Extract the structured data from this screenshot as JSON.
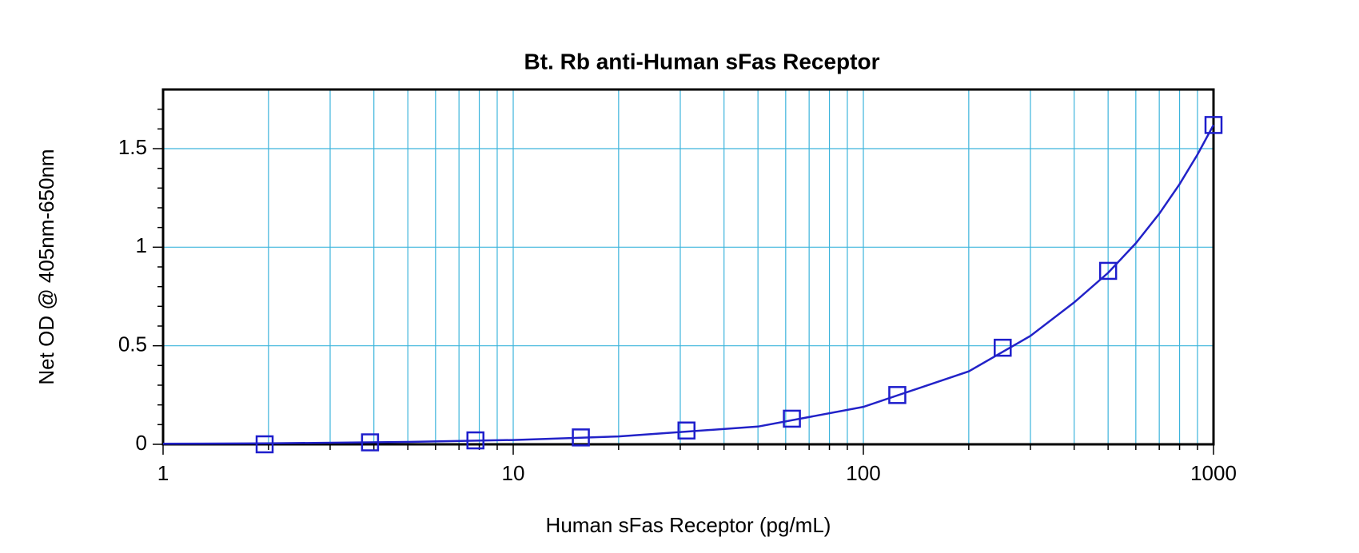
{
  "chart_data": {
    "type": "scatter",
    "title": "Bt. Rb anti-Human sFas  Receptor",
    "x_label": "Human sFas Receptor (pg/mL)",
    "y_label": "Net OD @ 405nm-650nm",
    "x_scale": "log",
    "xlim": [
      1,
      1000
    ],
    "xticks": [
      1,
      10,
      100,
      1000
    ],
    "xminor": [
      2,
      3,
      4,
      5,
      6,
      7,
      8,
      9,
      20,
      30,
      40,
      50,
      60,
      70,
      80,
      90,
      200,
      300,
      400,
      500,
      600,
      700,
      800,
      900
    ],
    "ylim": [
      0,
      1.8
    ],
    "yticks": [
      0,
      0.5,
      1,
      1.5
    ],
    "yminor": [
      0.1,
      0.2,
      0.3,
      0.4,
      0.6,
      0.7,
      0.8,
      0.9,
      1.1,
      1.2,
      1.3,
      1.4,
      1.6,
      1.7
    ],
    "grid": true,
    "grid_color": "#3cb4dc",
    "series": [
      {
        "marker": "square",
        "color": "#1e1ecc",
        "x": [
          1.95,
          3.9,
          7.8,
          15.6,
          31.25,
          62.5,
          125,
          250,
          500,
          1000
        ],
        "values": [
          0.0,
          0.01,
          0.02,
          0.035,
          0.07,
          0.13,
          0.25,
          0.49,
          0.88,
          1.62
        ]
      },
      {
        "marker": "none",
        "color": "#2222c8",
        "x": [
          1,
          2,
          5,
          10,
          20,
          50,
          100,
          200,
          300,
          400,
          500,
          600,
          700,
          800,
          900,
          1000
        ],
        "values": [
          0.003,
          0.005,
          0.012,
          0.022,
          0.04,
          0.09,
          0.19,
          0.37,
          0.55,
          0.72,
          0.87,
          1.02,
          1.17,
          1.32,
          1.47,
          1.62
        ]
      }
    ]
  }
}
